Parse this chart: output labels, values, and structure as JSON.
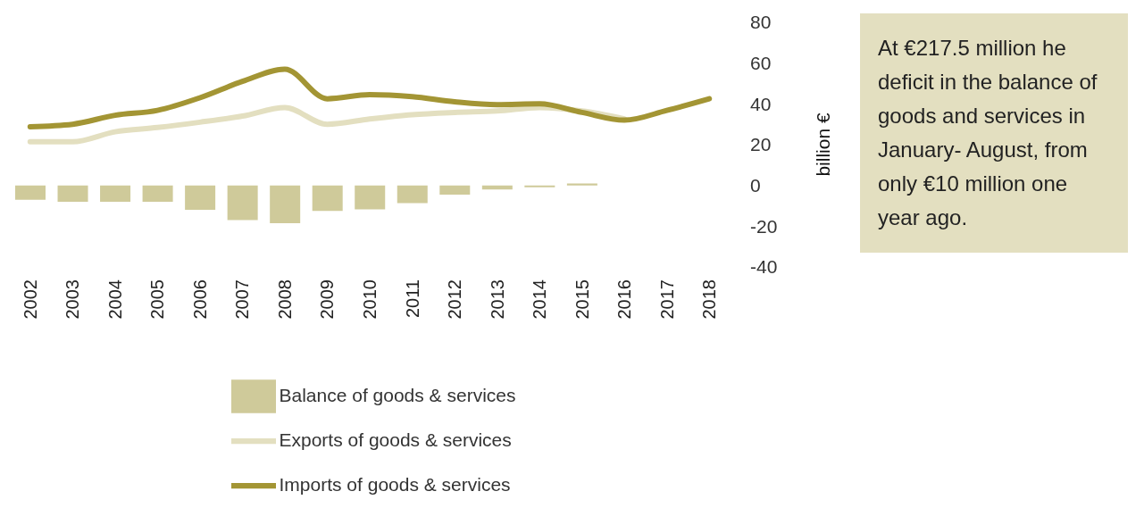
{
  "chart_data": {
    "type": "bar",
    "categories": [
      "2002",
      "2003",
      "2004",
      "2005",
      "2006",
      "2007",
      "2008",
      "2009",
      "2010",
      "2011",
      "2012",
      "2013",
      "2014",
      "2015",
      "2016",
      "2017",
      "2018"
    ],
    "series": [
      {
        "name": "Balance of goods & services",
        "color": "#cfca9a",
        "values": [
          -7,
          -8,
          -8,
          -8,
          -12,
          -17,
          -18.5,
          -12.5,
          -11.7,
          -8.7,
          -4.5,
          -2,
          -0.9,
          1,
          null,
          null,
          null
        ]
      },
      {
        "name": "Exports of goods & services",
        "type": "line",
        "color": "#e3dfc0",
        "values": [
          21.4,
          21.4,
          26.3,
          28.4,
          31,
          34,
          38.2,
          30,
          32.6,
          34.7,
          35.8,
          36.5,
          38.2,
          36.5,
          32.6,
          null,
          null
        ]
      },
      {
        "name": "Imports of goods & services",
        "type": "line",
        "color": "#a39534",
        "values": [
          28.8,
          30,
          34.4,
          36.8,
          43,
          51,
          57,
          42.5,
          44.5,
          43.5,
          41,
          39.6,
          40,
          35.8,
          32,
          36.8,
          42.5
        ]
      }
    ],
    "ylabel": "billion €",
    "ylim": [
      -40,
      80
    ],
    "yticks": [
      -40,
      -20,
      0,
      20,
      40,
      60,
      80
    ],
    "grid": false,
    "legend": "bottom",
    "marker": "none",
    "line_style": "solid",
    "annotations": [
      "At €217.5 million he deficit in the balance of goods and services in January- August, from only €10 million one year ago."
    ]
  }
}
